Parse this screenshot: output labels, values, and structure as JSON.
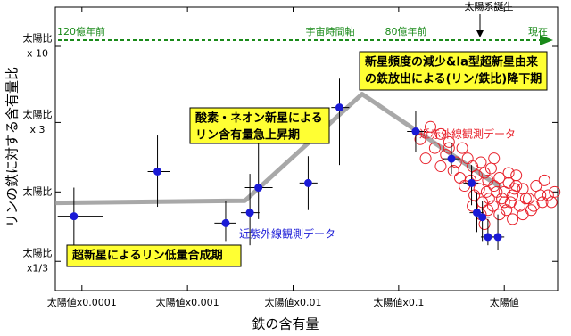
{
  "chart_data": {
    "type": "scatter",
    "x_label": "鉄の含有量",
    "y_label": "リンの鉄に対する含有量比",
    "xscale": "log",
    "yscale": "log",
    "xlim": [
      5.6e-05,
      3.2
    ],
    "ylim": [
      0.21,
      18.6
    ],
    "xticks": [
      {
        "value": 0.0001,
        "label": "太陽値x0.0001"
      },
      {
        "value": 0.001,
        "label": "太陽値x0.001"
      },
      {
        "value": 0.01,
        "label": "太陽値x0.01"
      },
      {
        "value": 0.1,
        "label": "太陽値x0.1"
      },
      {
        "value": 1,
        "label": "太陽値"
      }
    ],
    "yticks": [
      {
        "value": 0.3333,
        "label": "太陽比\nx1/3"
      },
      {
        "value": 1,
        "label": "太陽比"
      },
      {
        "value": 3,
        "label": "太陽比\nx 3"
      },
      {
        "value": 10,
        "label": "太陽比\nx 10"
      }
    ],
    "timeline": {
      "start": "120億年前",
      "title": "宇宙時間軸",
      "mid": "80億年前",
      "end": "現在",
      "event": "太陽系誕生",
      "color": "#1a8a1a"
    },
    "trend_line": {
      "color": "#999999",
      "x": [
        5.6e-05,
        0.0035,
        0.045,
        0.93
      ],
      "y": [
        0.84,
        0.87,
        4.7,
        1.07
      ]
    },
    "series": [
      {
        "name": "近赤外線観測データ",
        "color": "#e8202a",
        "x": [
          0.16,
          0.2,
          0.22,
          0.25,
          0.18,
          0.3,
          0.28,
          0.35,
          0.4,
          0.33,
          0.45,
          0.5,
          0.38,
          0.55,
          0.6,
          0.65,
          0.7,
          0.75,
          0.8,
          0.9,
          1.0,
          1.1,
          1.2,
          1.3,
          1.5,
          1.7,
          2.0,
          2.3,
          2.6,
          0.42,
          0.48,
          0.52,
          0.58,
          0.62,
          0.68,
          0.72,
          0.78,
          0.85,
          0.95,
          1.05,
          1.15,
          1.25,
          1.4,
          1.6,
          1.8,
          2.2,
          2.8,
          0.5,
          0.6,
          0.7,
          0.9,
          1.0,
          1.2,
          1.5,
          1.9,
          0.3,
          0.25,
          0.8,
          1.1,
          1.3,
          0.65,
          2.4,
          3.0
        ],
        "y": [
          2.3,
          2.8,
          2.0,
          2.5,
          1.7,
          2.2,
          1.8,
          1.6,
          2.0,
          1.4,
          1.7,
          1.5,
          1.25,
          1.3,
          1.6,
          1.35,
          1.2,
          1.45,
          1.1,
          1.25,
          1.0,
          1.15,
          0.95,
          1.3,
          1.05,
          0.9,
          1.1,
          0.85,
          0.95,
          1.1,
          1.2,
          0.95,
          1.05,
          0.85,
          1.0,
          0.9,
          0.8,
          1.0,
          0.9,
          0.75,
          0.85,
          1.05,
          0.8,
          0.9,
          0.75,
          0.95,
          0.85,
          0.8,
          0.7,
          0.75,
          0.7,
          0.85,
          0.65,
          0.7,
          0.8,
          2.0,
          1.5,
          1.7,
          1.35,
          1.1,
          0.6,
          1.2,
          1.0
        ]
      },
      {
        "name": "近紫外線観測データ",
        "color": "#1a1ad6",
        "x": [
          8.4e-05,
          0.00052,
          0.0023,
          0.0039,
          0.0047,
          0.0139,
          0.0275,
          0.145,
          0.316,
          0.49,
          0.55,
          0.62,
          0.87,
          0.7
        ],
        "y": [
          0.68,
          1.38,
          0.61,
          0.72,
          1.07,
          1.15,
          3.8,
          2.6,
          1.69,
          1.15,
          0.72,
          0.67,
          0.49,
          0.49
        ],
        "x_low": [
          5.9e-05,
          0.00042,
          0.0018,
          0.0032,
          0.0035,
          0.0115,
          0.023,
          0.12,
          0.26,
          0.41,
          0.47,
          0.54,
          0.77,
          0.6
        ],
        "x_high": [
          0.00016,
          0.00068,
          0.0029,
          0.0048,
          0.0064,
          0.017,
          0.034,
          0.18,
          0.38,
          0.57,
          0.63,
          0.73,
          1.0,
          0.8
        ],
        "y_low": [
          0.43,
          0.79,
          0.46,
          0.43,
          0.65,
          0.75,
          1.53,
          1.89,
          1.33,
          0.81,
          0.53,
          0.46,
          0.4,
          0.43
        ],
        "y_high": [
          1.07,
          2.44,
          0.87,
          1.33,
          2.33,
          1.76,
          6.0,
          3.6,
          2.17,
          1.53,
          1.0,
          0.87,
          0.7,
          0.65
        ]
      }
    ],
    "annotations": [
      {
        "lines": [
          "新星頻度の減少&Ia型超新星由来",
          "の鉄放出による(リン/鉄比)降下期"
        ],
        "bg": "#ffff33"
      },
      {
        "lines": [
          "酸素・ネオン新星による",
          "リン含有量急上昇期"
        ],
        "bg": "#ffff33"
      },
      {
        "lines": [
          "超新星によるリン低量合成期"
        ],
        "bg": "#ffff33"
      }
    ]
  }
}
